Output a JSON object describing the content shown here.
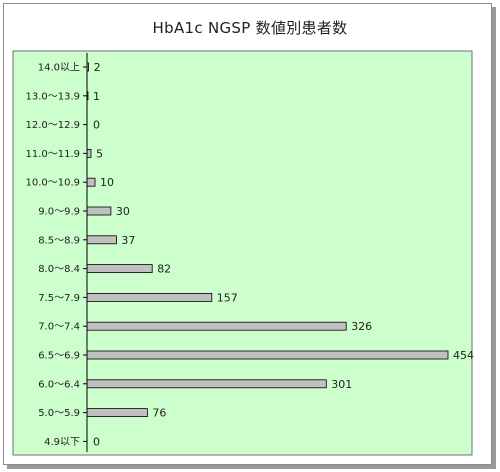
{
  "chart_data": {
    "type": "bar",
    "orientation": "horizontal",
    "title": "HbA1c NGSP 数値別患者数",
    "categories": [
      "14.0以上",
      "13.0～13.9",
      "12.0～12.9",
      "11.0～11.9",
      "10.0～10.9",
      "9.0～9.9",
      "8.5～8.9",
      "8.0～8.4",
      "7.5～7.9",
      "7.0～7.4",
      "6.5～6.9",
      "6.0～6.4",
      "5.0～5.9",
      "4.9以下"
    ],
    "values": [
      2,
      1,
      0,
      5,
      10,
      30,
      37,
      82,
      157,
      326,
      454,
      301,
      76,
      0
    ],
    "value_labels": [
      "2",
      "1",
      "0",
      "5",
      "10",
      "30",
      "37",
      "82",
      "157",
      "326",
      "454",
      "301",
      "76",
      "0"
    ],
    "xlim": [
      0,
      454
    ],
    "grid": false,
    "colors": {
      "plot_background": "#ccffcc",
      "bar_fill": "#c0c0c0",
      "bar_stroke": "#000000"
    }
  }
}
